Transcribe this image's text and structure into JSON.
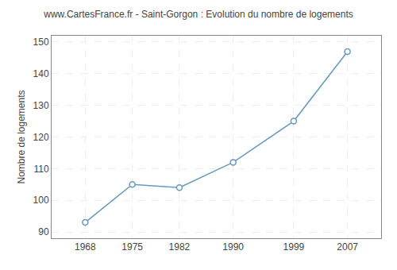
{
  "chart_data": {
    "type": "line",
    "title": "www.CartesFrance.fr - Saint-Gorgon : Evolution du nombre de logements",
    "ylabel": "Nombre de logements",
    "x": [
      1968,
      1975,
      1982,
      1990,
      1999,
      2007
    ],
    "values": [
      93,
      105,
      104,
      112,
      125,
      147
    ],
    "color": "#6699bb",
    "marker": "circle",
    "xlim": [
      1963,
      2012
    ],
    "xticks": [
      1968,
      1975,
      1982,
      1990,
      1999,
      2007
    ],
    "ylim": [
      88,
      152
    ],
    "yticks": [
      90,
      100,
      110,
      120,
      130,
      140,
      150
    ],
    "grid": true
  }
}
